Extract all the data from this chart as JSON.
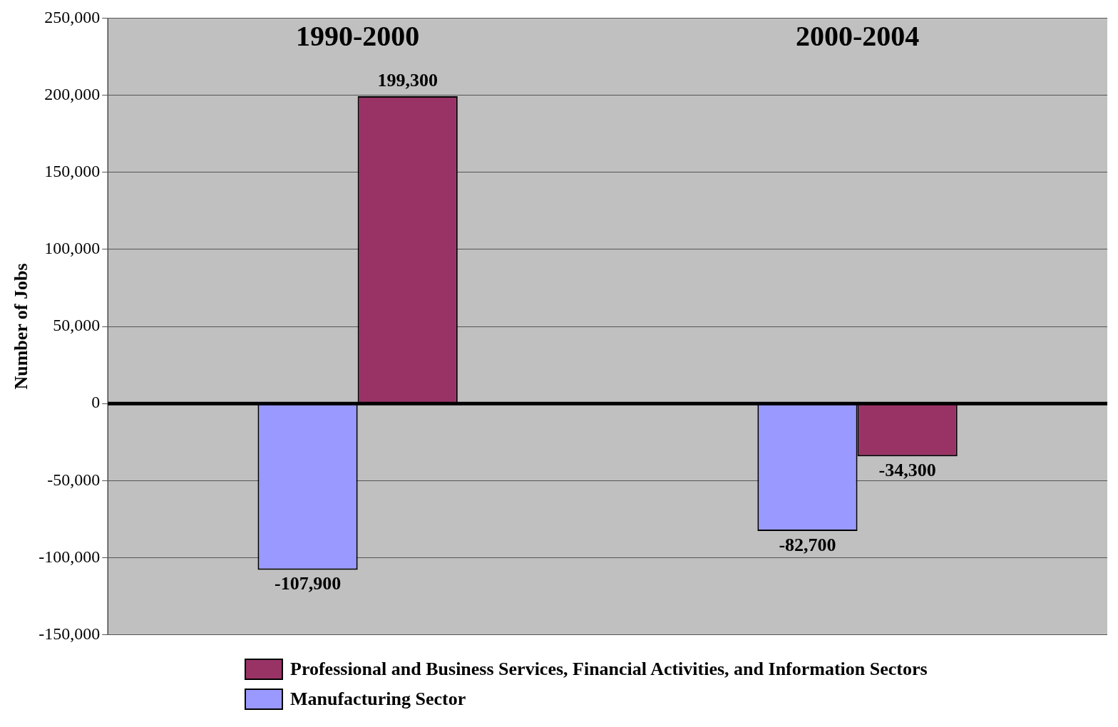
{
  "chart_data": {
    "type": "bar",
    "categories": [
      "1990-2000",
      "2000-2004"
    ],
    "ylabel": "Number of Jobs",
    "series": [
      {
        "name": "Manufacturing Sector",
        "color": "#9999ff",
        "values": [
          -107900,
          -82700
        ],
        "value_labels": [
          "-107,900",
          "-82,700"
        ]
      },
      {
        "name": "Professional and Business Services, Financial Activities, and Information Sectors",
        "color": "#993366",
        "values": [
          199300,
          -34300
        ],
        "value_labels": [
          "199,300",
          "-34,300"
        ]
      }
    ],
    "ylim": [
      -150000,
      250000
    ],
    "yticks": [
      {
        "value": -150000,
        "label": "-150,000"
      },
      {
        "value": -100000,
        "label": "-100,000"
      },
      {
        "value": -50000,
        "label": "-50,000"
      },
      0,
      {
        "value": 50000,
        "label": "50,000"
      },
      {
        "value": 100000,
        "label": "100,000"
      },
      {
        "value": 150000,
        "label": "150,000"
      },
      {
        "value": 200000,
        "label": "200,000"
      },
      {
        "value": 250000,
        "label": "250,000"
      }
    ],
    "grid": "y",
    "legend": "bottom"
  }
}
